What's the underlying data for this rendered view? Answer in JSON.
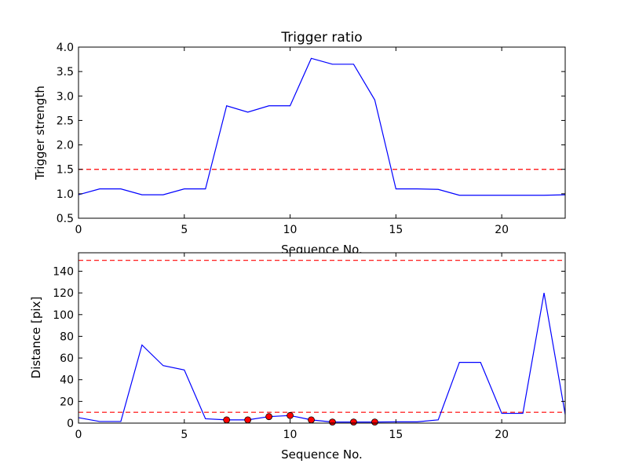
{
  "chart_data": [
    {
      "type": "line",
      "title": "Trigger ratio",
      "xlabel": "Sequence No.",
      "ylabel": "Trigger strength",
      "xlim": [
        0,
        23
      ],
      "ylim": [
        0.5,
        4.0
      ],
      "xticks": [
        0,
        5,
        10,
        15,
        20
      ],
      "yticks": [
        0.5,
        1.0,
        1.5,
        2.0,
        2.5,
        3.0,
        3.5,
        4.0
      ],
      "ytick_labels": [
        "0.5",
        "1.0",
        "1.5",
        "2.0",
        "2.5",
        "3.0",
        "3.5",
        "4.0"
      ],
      "grid": false,
      "line_color": "#0000ff",
      "threshold_color": "#ff0000",
      "series": [
        {
          "x": [
            0,
            1,
            2,
            3,
            4,
            5,
            6,
            7,
            8,
            9,
            10,
            11,
            12,
            13,
            14,
            15,
            16,
            17,
            18,
            19,
            20,
            21,
            22,
            23
          ],
          "values": [
            0.98,
            1.1,
            1.1,
            0.98,
            0.98,
            1.1,
            1.1,
            2.8,
            2.67,
            2.8,
            2.8,
            3.77,
            3.65,
            3.65,
            2.92,
            1.1,
            1.1,
            1.09,
            0.97,
            0.97,
            0.97,
            0.97,
            0.97,
            0.98
          ]
        }
      ],
      "thresholds": [
        1.5
      ]
    },
    {
      "type": "line",
      "title": "",
      "xlabel": "Sequence No.",
      "ylabel": "Distance [pix]",
      "xlim": [
        0,
        23
      ],
      "ylim": [
        0,
        157
      ],
      "xticks": [
        0,
        5,
        10,
        15,
        20
      ],
      "yticks": [
        0,
        20,
        40,
        60,
        80,
        100,
        120,
        140
      ],
      "ytick_labels": [
        "0",
        "20",
        "40",
        "60",
        "80",
        "100",
        "120",
        "140"
      ],
      "grid": false,
      "line_color": "#0000ff",
      "threshold_color": "#ff0000",
      "marker_color": "#ff0000",
      "series": [
        {
          "x": [
            0,
            1,
            2,
            3,
            4,
            5,
            6,
            7,
            8,
            9,
            10,
            11,
            12,
            13,
            14,
            15,
            16,
            17,
            18,
            19,
            20,
            21,
            22,
            23
          ],
          "values": [
            5,
            1.5,
            1.5,
            72,
            53,
            49,
            4,
            3,
            3,
            6,
            7,
            3,
            1,
            1,
            1,
            1.2,
            1.2,
            3,
            56,
            56,
            9,
            9,
            120,
            8
          ]
        }
      ],
      "markers": {
        "x": [
          7,
          8,
          9,
          10,
          11,
          12,
          13,
          14
        ],
        "values": [
          3,
          3,
          6,
          7,
          3,
          1,
          1,
          1
        ]
      },
      "thresholds": [
        10,
        150
      ]
    }
  ]
}
